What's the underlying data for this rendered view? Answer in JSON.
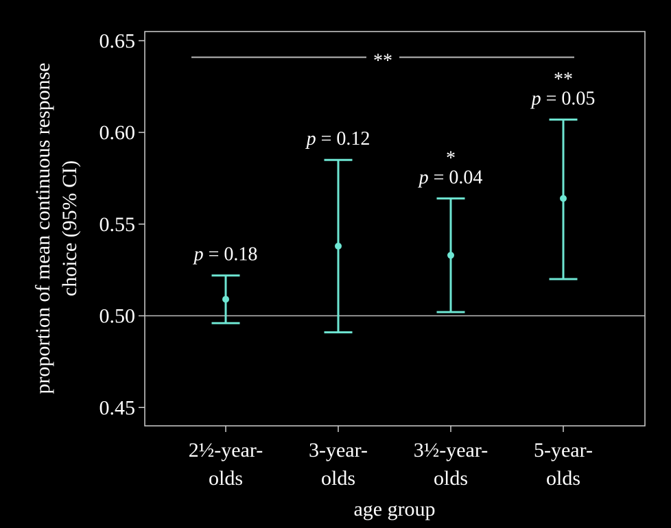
{
  "chart_data": {
    "type": "errorbar",
    "xlabel": "age group",
    "ylabel": "proportion of mean continuous response choice (95% CI)",
    "ylabel_lines": [
      "proportion of mean continuous response",
      "choice (95% CI)"
    ],
    "ylim": [
      0.44,
      0.655
    ],
    "yticks": [
      0.45,
      0.5,
      0.55,
      0.6,
      0.65
    ],
    "ytick_labels": [
      "0.45",
      "0.50",
      "0.55",
      "0.60",
      "0.65"
    ],
    "reference_line": 0.5,
    "color": "#6ee6d3",
    "categories": [
      {
        "line1": "2½-year-",
        "line2": "olds"
      },
      {
        "line1": "3-year-",
        "line2": "olds"
      },
      {
        "line1": "3½-year-",
        "line2": "olds"
      },
      {
        "line1": "5-year-",
        "line2": "olds"
      }
    ],
    "points": [
      {
        "mean": 0.509,
        "lower": 0.496,
        "upper": 0.522,
        "p_label": "p",
        "p_value": "= 0.18",
        "stars": ""
      },
      {
        "mean": 0.538,
        "lower": 0.491,
        "upper": 0.585,
        "p_label": "p",
        "p_value": "= 0.12",
        "stars": ""
      },
      {
        "mean": 0.533,
        "lower": 0.502,
        "upper": 0.564,
        "p_label": "p",
        "p_value": "= 0.04",
        "stars": "*"
      },
      {
        "mean": 0.564,
        "lower": 0.52,
        "upper": 0.607,
        "p_label": "p",
        "p_value": "= 0.05",
        "stars": "**"
      }
    ],
    "bracket": {
      "from": 0,
      "to": 3,
      "y": 0.641,
      "label": "**"
    }
  }
}
